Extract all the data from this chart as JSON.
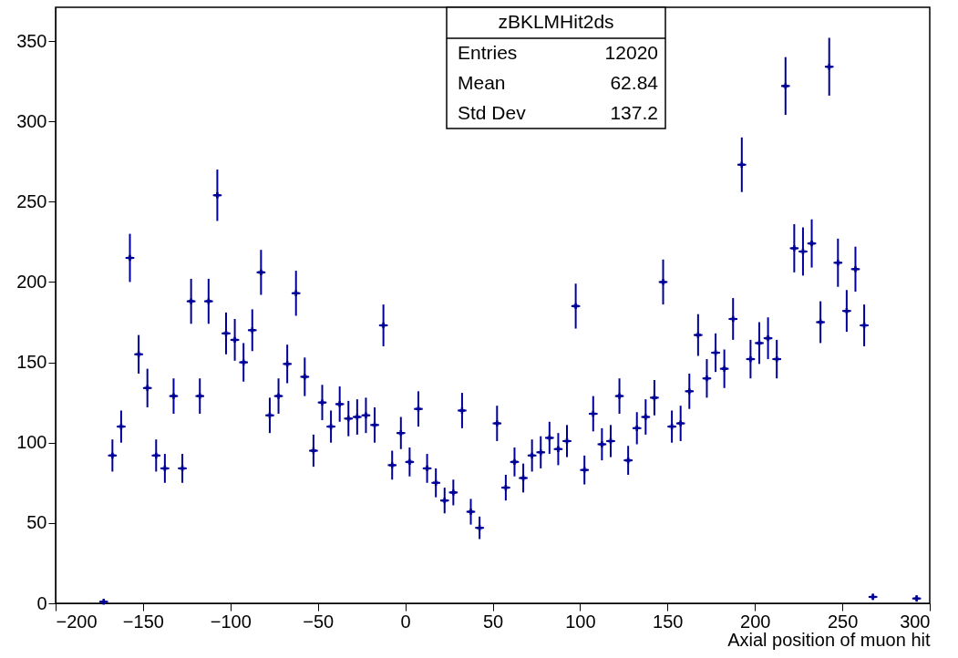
{
  "chart_data": {
    "type": "scatter",
    "title": "zBKLMHit2ds",
    "xlabel": "Axial position of muon hit",
    "annotations": [
      "Entries",
      "12020",
      "Mean",
      "62.84",
      "Std Dev",
      "137.2"
    ],
    "x": [
      -172.5,
      -167.5,
      -162.5,
      -157.5,
      -152.5,
      -147.5,
      -142.5,
      -137.5,
      -132.5,
      -127.5,
      -122.5,
      -117.5,
      -112.5,
      -107.5,
      -102.5,
      -97.5,
      -92.5,
      -87.5,
      -82.5,
      -77.5,
      -72.5,
      -67.5,
      -62.5,
      -57.5,
      -52.5,
      -47.5,
      -42.5,
      -37.5,
      -32.5,
      -27.5,
      -22.5,
      -17.5,
      -12.5,
      -7.5,
      -2.5,
      2.5,
      7.5,
      12.5,
      17.5,
      22.5,
      27.5,
      32.5,
      37.5,
      42.5,
      47.5,
      52.5,
      57.5,
      62.5,
      67.5,
      72.5,
      77.5,
      82.5,
      87.5,
      92.5,
      97.5,
      102.5,
      107.5,
      112.5,
      117.5,
      122.5,
      127.5,
      132.5,
      137.5,
      142.5,
      147.5,
      152.5,
      157.5,
      162.5,
      167.5,
      172.5,
      177.5,
      182.5,
      187.5,
      192.5,
      197.5,
      202.5,
      207.5,
      212.5,
      217.5,
      222.5,
      227.5,
      232.5,
      237.5,
      242.5,
      247.5,
      252.5,
      257.5,
      262.5,
      267.5,
      272.5,
      277.5,
      282.5,
      287.5,
      292.5
    ],
    "series": [
      {
        "color": "#000099",
        "values": [
          1,
          92,
          110,
          215,
          155,
          134,
          92,
          84,
          129,
          84,
          188,
          129,
          188,
          254,
          168,
          164,
          150,
          170,
          206,
          117,
          129,
          149,
          193,
          141,
          95,
          125,
          110,
          124,
          115,
          116,
          117,
          111,
          173,
          86,
          106,
          88,
          121,
          84,
          75,
          64,
          69,
          120,
          57,
          47,
          null,
          112,
          72,
          88,
          78,
          92,
          94,
          103,
          96,
          101,
          185,
          83,
          118,
          99,
          101,
          129,
          89,
          109,
          116,
          128,
          200,
          110,
          112,
          132,
          167,
          140,
          156,
          146,
          177,
          273,
          152,
          162,
          165,
          152,
          322,
          221,
          219,
          224,
          175,
          334,
          212,
          182,
          208,
          173,
          4,
          null,
          null,
          null,
          null,
          3
        ],
        "errors": [
          null,
          10,
          10,
          15,
          12,
          12,
          10,
          9,
          11,
          9,
          14,
          11,
          14,
          16,
          13,
          13,
          12,
          13,
          14,
          11,
          11,
          12,
          14,
          12,
          10,
          11,
          10,
          11,
          11,
          11,
          11,
          11,
          13,
          9,
          10,
          9,
          11,
          9,
          9,
          8,
          8,
          11,
          8,
          7,
          null,
          11,
          8,
          9,
          9,
          10,
          10,
          10,
          10,
          10,
          14,
          9,
          11,
          10,
          10,
          11,
          9,
          10,
          11,
          11,
          14,
          10,
          11,
          11,
          13,
          12,
          12,
          12,
          13,
          17,
          12,
          13,
          13,
          12,
          18,
          15,
          15,
          15,
          13,
          18,
          15,
          13,
          14,
          13,
          2,
          null,
          null,
          null,
          null,
          2
        ],
        "xerrors": [
          2.5,
          2.5,
          2.5,
          2.5,
          2.5,
          2.5,
          2.5,
          2.5,
          2.5,
          2.5,
          2.5,
          2.5,
          2.5,
          2.5,
          2.5,
          2.5,
          2.5,
          2.5,
          2.5,
          2.5,
          2.5,
          2.5,
          2.5,
          2.5,
          2.5,
          2.5,
          2.5,
          2.5,
          2.5,
          2.5,
          2.5,
          2.5,
          2.5,
          2.5,
          2.5,
          2.5,
          2.5,
          2.5,
          2.5,
          2.5,
          2.5,
          2.5,
          2.5,
          2.5,
          null,
          2.5,
          2.5,
          2.5,
          2.5,
          2.5,
          2.5,
          2.5,
          2.5,
          2.5,
          2.5,
          2.5,
          2.5,
          2.5,
          2.5,
          2.5,
          2.5,
          2.5,
          2.5,
          2.5,
          2.5,
          2.5,
          2.5,
          2.5,
          2.5,
          2.5,
          2.5,
          2.5,
          2.5,
          2.5,
          2.5,
          2.5,
          2.5,
          2.5,
          2.5,
          2.5,
          2.5,
          2.5,
          2.5,
          2.5,
          2.5,
          2.5,
          2.5,
          2.5,
          2.5,
          null,
          null,
          null,
          null,
          2.5
        ]
      }
    ],
    "xlim": [
      -200,
      300
    ],
    "xticks": [
      -200,
      -150,
      -100,
      -50,
      0,
      50,
      100,
      150,
      200,
      250,
      300
    ],
    "ylim": [
      0,
      371
    ],
    "yticks": [
      0,
      50,
      100,
      150,
      200,
      250,
      300,
      350
    ],
    "marker": "cross",
    "grid": false
  }
}
